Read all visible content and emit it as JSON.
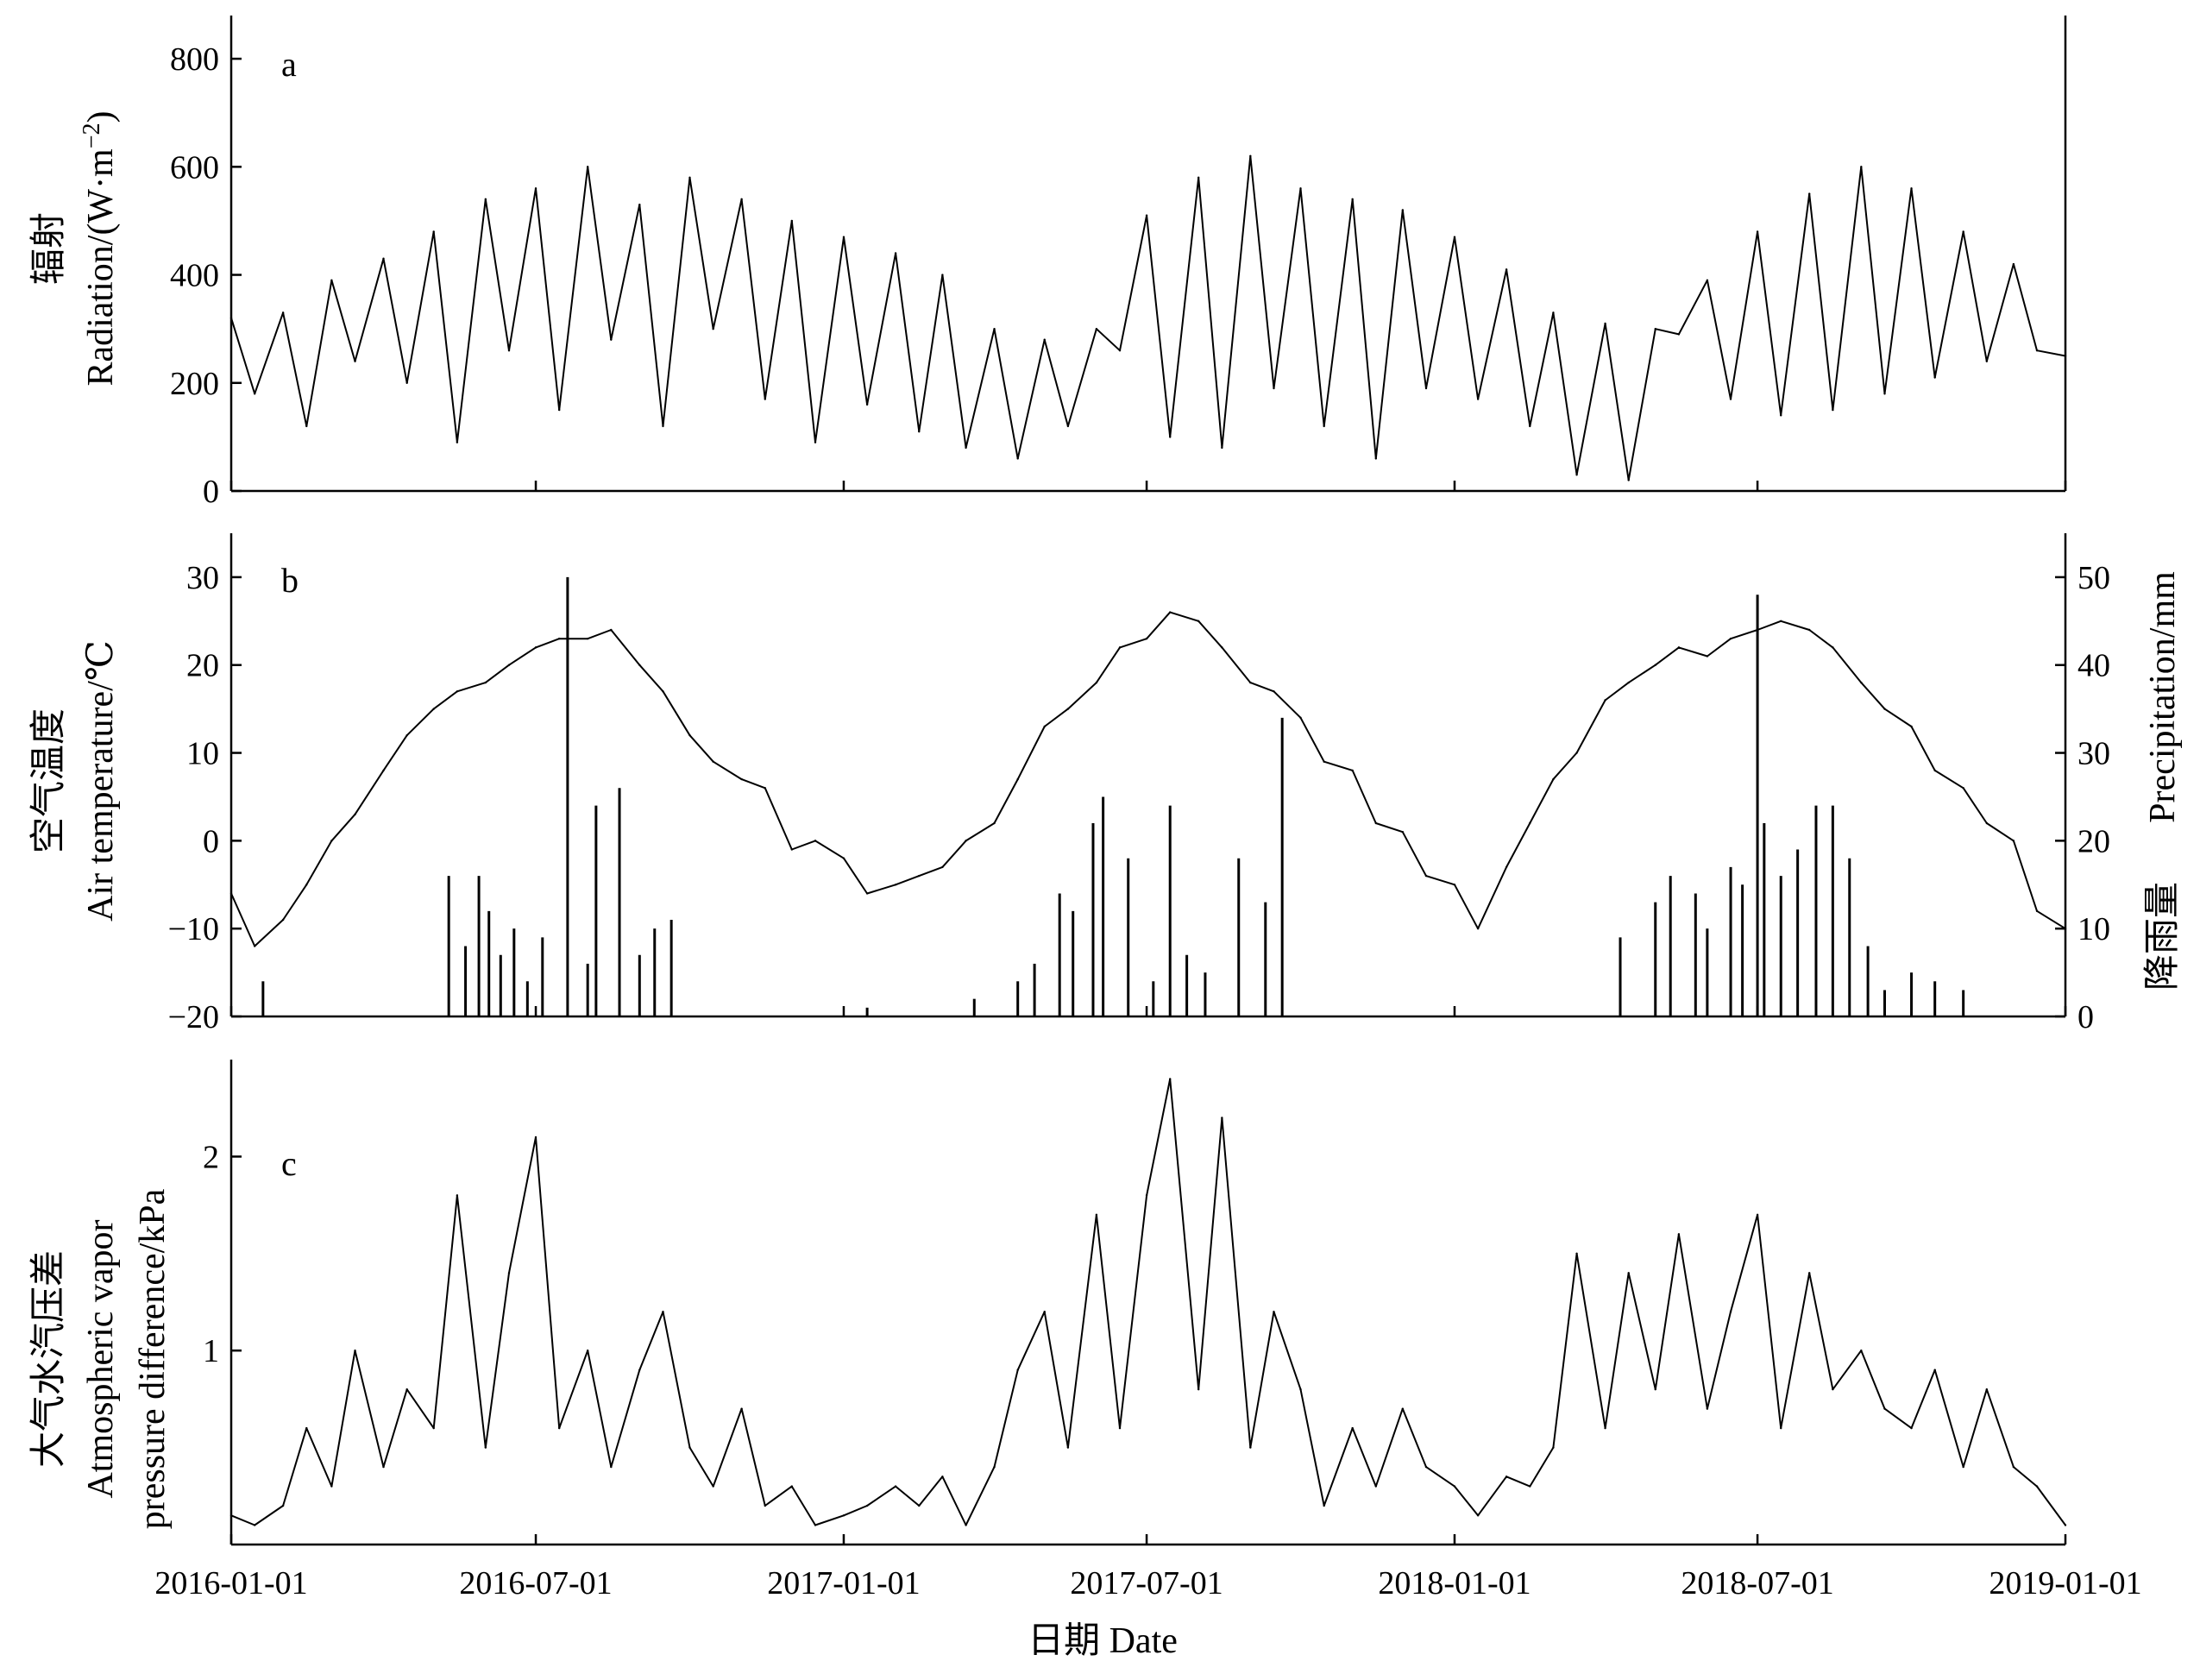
{
  "chart_data": [
    {
      "panel": "a",
      "type": "line",
      "ylabel_cn": "辐射",
      "ylabel_en": "Radiation/(W·m",
      "ylabel_sup": "−2",
      "ylabel_close": ")",
      "ylim": [
        0,
        880
      ],
      "yticks": [
        0,
        200,
        400,
        600,
        800
      ],
      "ytick_labels": [
        "0",
        "200",
        "400",
        "600",
        "800"
      ],
      "series": [
        {
          "x": [
            "2016-01-01",
            "2016-01-15",
            "2016-02-01",
            "2016-02-15",
            "2016-03-01",
            "2016-03-15",
            "2016-04-01",
            "2016-04-15",
            "2016-05-01",
            "2016-05-15",
            "2016-06-01",
            "2016-06-15",
            "2016-07-01",
            "2016-07-15",
            "2016-08-01",
            "2016-08-15",
            "2016-09-01",
            "2016-09-15",
            "2016-10-01",
            "2016-10-15",
            "2016-11-01",
            "2016-11-15",
            "2016-12-01",
            "2016-12-15",
            "2017-01-01",
            "2017-01-15",
            "2017-02-01",
            "2017-02-15",
            "2017-03-01",
            "2017-03-15",
            "2017-04-01",
            "2017-04-15",
            "2017-05-01",
            "2017-05-15",
            "2017-06-01",
            "2017-06-15",
            "2017-07-01",
            "2017-07-15",
            "2017-08-01",
            "2017-08-15",
            "2017-09-01",
            "2017-09-15",
            "2017-10-01",
            "2017-10-15",
            "2017-11-01",
            "2017-11-15",
            "2017-12-01",
            "2017-12-15",
            "2018-01-01",
            "2018-01-15",
            "2018-02-01",
            "2018-02-15",
            "2018-03-01",
            "2018-03-15",
            "2018-04-01",
            "2018-04-15",
            "2018-05-01",
            "2018-05-15",
            "2018-06-01",
            "2018-06-15",
            "2018-07-01",
            "2018-07-15",
            "2018-08-01",
            "2018-08-15",
            "2018-09-01",
            "2018-09-15",
            "2018-10-01",
            "2018-10-15",
            "2018-11-01",
            "2018-11-15",
            "2018-12-01",
            "2018-12-15",
            "2019-01-01"
          ],
          "y": [
            320,
            180,
            330,
            120,
            390,
            240,
            430,
            200,
            480,
            90,
            540,
            260,
            560,
            150,
            600,
            280,
            530,
            120,
            580,
            300,
            540,
            170,
            500,
            90,
            470,
            160,
            440,
            110,
            400,
            80,
            300,
            60,
            280,
            120,
            300,
            260,
            510,
            100,
            580,
            80,
            620,
            190,
            560,
            120,
            540,
            60,
            520,
            190,
            470,
            170,
            410,
            120,
            330,
            30,
            310,
            20,
            300,
            290,
            390,
            170,
            480,
            140,
            550,
            150,
            600,
            180,
            560,
            210,
            480,
            240,
            420,
            260,
            250
          ]
        }
      ]
    },
    {
      "panel": "b",
      "type": "line",
      "ylabel_cn": "空气温度",
      "ylabel_en": "Air temperature/℃",
      "ylabel2_cn": "降雨量",
      "ylabel2_en": "Precipitation/mm",
      "ylim": [
        -20,
        35
      ],
      "yticks": [
        -20,
        -10,
        0,
        10,
        20,
        30
      ],
      "ytick_labels": [
        "−20",
        "−10",
        "0",
        "10",
        "20",
        "30"
      ],
      "y2lim": [
        0,
        55
      ],
      "y2ticks": [
        0,
        10,
        20,
        30,
        40,
        50
      ],
      "y2tick_labels": [
        "0",
        "10",
        "20",
        "30",
        "40",
        "50"
      ],
      "series": [
        {
          "name": "Air temperature",
          "x": [
            "2016-01-01",
            "2016-01-15",
            "2016-02-01",
            "2016-02-15",
            "2016-03-01",
            "2016-03-15",
            "2016-04-01",
            "2016-04-15",
            "2016-05-01",
            "2016-05-15",
            "2016-06-01",
            "2016-06-15",
            "2016-07-01",
            "2016-07-15",
            "2016-08-01",
            "2016-08-15",
            "2016-09-01",
            "2016-09-15",
            "2016-10-01",
            "2016-10-15",
            "2016-11-01",
            "2016-11-15",
            "2016-12-01",
            "2016-12-15",
            "2017-01-01",
            "2017-01-15",
            "2017-02-01",
            "2017-02-15",
            "2017-03-01",
            "2017-03-15",
            "2017-04-01",
            "2017-04-15",
            "2017-05-01",
            "2017-05-15",
            "2017-06-01",
            "2017-06-15",
            "2017-07-01",
            "2017-07-15",
            "2017-08-01",
            "2017-08-15",
            "2017-09-01",
            "2017-09-15",
            "2017-10-01",
            "2017-10-15",
            "2017-11-01",
            "2017-11-15",
            "2017-12-01",
            "2017-12-15",
            "2018-01-01",
            "2018-01-15",
            "2018-02-01",
            "2018-02-15",
            "2018-03-01",
            "2018-03-15",
            "2018-04-01",
            "2018-04-15",
            "2018-05-01",
            "2018-05-15",
            "2018-06-01",
            "2018-06-15",
            "2018-07-01",
            "2018-07-15",
            "2018-08-01",
            "2018-08-15",
            "2018-09-01",
            "2018-09-15",
            "2018-10-01",
            "2018-10-15",
            "2018-11-01",
            "2018-11-15",
            "2018-12-01",
            "2018-12-15",
            "2019-01-01"
          ],
          "y": [
            -6,
            -12,
            -9,
            -5,
            0,
            3,
            8,
            12,
            15,
            17,
            18,
            20,
            22,
            23,
            23,
            24,
            20,
            17,
            12,
            9,
            7,
            6,
            -1,
            0,
            -2,
            -6,
            -5,
            -4,
            -3,
            0,
            2,
            7,
            13,
            15,
            18,
            22,
            23,
            26,
            25,
            22,
            18,
            17,
            14,
            9,
            8,
            2,
            1,
            -4,
            -5,
            -10,
            -3,
            2,
            7,
            10,
            16,
            18,
            20,
            22,
            21,
            23,
            24,
            25,
            24,
            22,
            18,
            15,
            13,
            8,
            6,
            2,
            0,
            -8,
            -10
          ]
        },
        {
          "name": "Precipitation",
          "x": [
            "2016-01-20",
            "2016-05-10",
            "2016-05-20",
            "2016-05-28",
            "2016-06-03",
            "2016-06-10",
            "2016-06-18",
            "2016-06-26",
            "2016-07-05",
            "2016-07-20",
            "2016-08-01",
            "2016-08-06",
            "2016-08-20",
            "2016-09-01",
            "2016-09-10",
            "2016-09-20",
            "2017-01-15",
            "2017-03-20",
            "2017-04-15",
            "2017-04-25",
            "2017-05-10",
            "2017-05-18",
            "2017-05-30",
            "2017-06-05",
            "2017-06-20",
            "2017-07-05",
            "2017-07-15",
            "2017-07-25",
            "2017-08-05",
            "2017-08-25",
            "2017-09-10",
            "2017-09-20",
            "2018-04-10",
            "2018-05-01",
            "2018-05-10",
            "2018-05-25",
            "2018-06-01",
            "2018-06-15",
            "2018-06-22",
            "2018-07-01",
            "2018-07-05",
            "2018-07-15",
            "2018-07-25",
            "2018-08-05",
            "2018-08-15",
            "2018-08-25",
            "2018-09-05",
            "2018-09-15",
            "2018-10-01",
            "2018-10-15",
            "2018-11-01"
          ],
          "y": [
            4,
            16,
            8,
            16,
            12,
            7,
            10,
            4,
            9,
            50,
            6,
            24,
            26,
            7,
            10,
            11,
            1,
            2,
            4,
            6,
            14,
            12,
            22,
            25,
            18,
            4,
            24,
            7,
            5,
            18,
            13,
            34,
            9,
            13,
            16,
            14,
            10,
            17,
            15,
            48,
            22,
            16,
            19,
            24,
            24,
            18,
            8,
            3,
            5,
            4,
            3
          ]
        }
      ]
    },
    {
      "panel": "c",
      "type": "line",
      "ylabel_cn": "大气水汽压差",
      "ylabel_en_1": "Atmospheric vapor",
      "ylabel_en_2": "pressure difference/kPa",
      "ylim": [
        0,
        2.5
      ],
      "yticks": [
        1,
        2
      ],
      "ytick_labels": [
        "1",
        "2"
      ],
      "xlabel": "日期  Date",
      "xticks": [
        "2016-01-01",
        "2016-07-01",
        "2017-01-01",
        "2017-07-01",
        "2018-01-01",
        "2018-07-01",
        "2019-01-01"
      ],
      "xtick_labels": [
        "2016-01-01",
        "2016-07-01",
        "2017-01-01",
        "2017-07-01",
        "2018-01-01",
        "2018-07-01",
        "2019-01-01"
      ],
      "series": [
        {
          "x": [
            "2016-01-01",
            "2016-01-15",
            "2016-02-01",
            "2016-02-15",
            "2016-03-01",
            "2016-03-15",
            "2016-04-01",
            "2016-04-15",
            "2016-05-01",
            "2016-05-15",
            "2016-06-01",
            "2016-06-15",
            "2016-07-01",
            "2016-07-15",
            "2016-08-01",
            "2016-08-15",
            "2016-09-01",
            "2016-09-15",
            "2016-10-01",
            "2016-10-15",
            "2016-11-01",
            "2016-11-15",
            "2016-12-01",
            "2016-12-15",
            "2017-01-01",
            "2017-01-15",
            "2017-02-01",
            "2017-02-15",
            "2017-03-01",
            "2017-03-15",
            "2017-04-01",
            "2017-04-15",
            "2017-05-01",
            "2017-05-15",
            "2017-06-01",
            "2017-06-15",
            "2017-07-01",
            "2017-07-15",
            "2017-08-01",
            "2017-08-15",
            "2017-09-01",
            "2017-09-15",
            "2017-10-01",
            "2017-10-15",
            "2017-11-01",
            "2017-11-15",
            "2017-12-01",
            "2017-12-15",
            "2018-01-01",
            "2018-01-15",
            "2018-02-01",
            "2018-02-15",
            "2018-03-01",
            "2018-03-15",
            "2018-04-01",
            "2018-04-15",
            "2018-05-01",
            "2018-05-15",
            "2018-06-01",
            "2018-06-15",
            "2018-07-01",
            "2018-07-15",
            "2018-08-01",
            "2018-08-15",
            "2018-09-01",
            "2018-09-15",
            "2018-10-01",
            "2018-10-15",
            "2018-11-01",
            "2018-11-15",
            "2018-12-01",
            "2018-12-15",
            "2019-01-01"
          ],
          "y": [
            0.15,
            0.1,
            0.2,
            0.6,
            0.3,
            1.0,
            0.4,
            0.8,
            0.6,
            1.8,
            0.5,
            1.4,
            2.1,
            0.6,
            1.0,
            0.4,
            0.9,
            1.2,
            0.5,
            0.3,
            0.7,
            0.2,
            0.3,
            0.1,
            0.15,
            0.2,
            0.3,
            0.2,
            0.35,
            0.1,
            0.4,
            0.9,
            1.2,
            0.5,
            1.7,
            0.6,
            1.8,
            2.4,
            0.8,
            2.2,
            0.5,
            1.2,
            0.8,
            0.2,
            0.6,
            0.3,
            0.7,
            0.4,
            0.3,
            0.15,
            0.35,
            0.3,
            0.5,
            1.5,
            0.6,
            1.4,
            0.8,
            1.6,
            0.7,
            1.2,
            1.7,
            0.6,
            1.4,
            0.8,
            1.0,
            0.7,
            0.6,
            0.9,
            0.4,
            0.8,
            0.4,
            0.3,
            0.1
          ]
        }
      ]
    }
  ]
}
